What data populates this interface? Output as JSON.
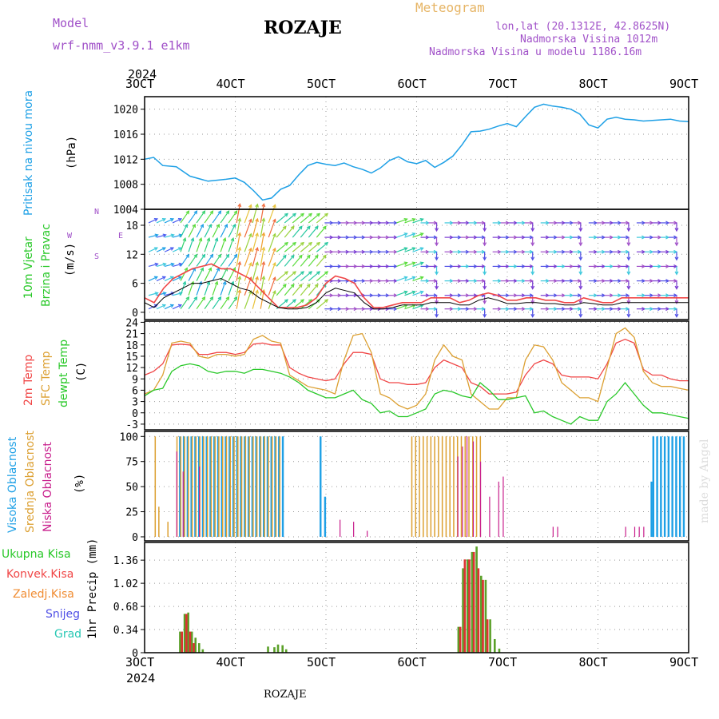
{
  "header": {
    "model_label": "Model",
    "model_name": "wrf-nmm_v3.9.1 e1km",
    "station": "ROZAJE",
    "meteogram": "Meteogram",
    "lonlat": "lon,lat (20.1312E, 42.8625N)",
    "elevation": "Nadmorska Visina 1012m",
    "model_elevation": "Nadmorska Visina u modelu 1186.16m",
    "footer_station": "ROZAJE",
    "watermark": "made by Angel",
    "year_top": "2024",
    "year_bottom": "2024"
  },
  "colors": {
    "pressure": "#1ea0e6",
    "temp2m": "#f04646",
    "sfc": "#dca032",
    "dewpt": "#28c828",
    "high_cloud": "#1ea0e6",
    "mid_cloud": "#dca032",
    "low_cloud": "#c81e8c",
    "purple": "#a050c8"
  },
  "dates": [
    "3OCT",
    "4OCT",
    "5OCT",
    "6OCT",
    "7OCT",
    "8OCT",
    "9OCT"
  ],
  "panels": {
    "pressure": {
      "label": "Pritisak na nivou mora",
      "unit": "(hPa)",
      "ticks": [
        "1020",
        "1016",
        "1012",
        "1008",
        "1004"
      ]
    },
    "wind": {
      "label1": "10m Vjetar",
      "label2": "Brzina i Pravac",
      "unit": "(m/s)",
      "ticks": [
        "18",
        "12",
        "6",
        "0"
      ],
      "compass": {
        "n": "N",
        "w": "W",
        "e": "E",
        "s": "S"
      }
    },
    "temp": {
      "label1": "2m Temp",
      "label2": "SFC Temp",
      "label3": "dewpt Temp",
      "unit": "(C)",
      "ticks": [
        "24",
        "21",
        "18",
        "15",
        "12",
        "9",
        "6",
        "3",
        "0",
        "-3"
      ]
    },
    "cloud": {
      "label1": "Visoka Oblacnost",
      "label2": "Srednja Oblacnost",
      "label3": "Niska Oblacnost",
      "unit": "(%)",
      "ticks": [
        "100",
        "75",
        "50",
        "25",
        "0"
      ]
    },
    "precip": {
      "unit": "1hr Precip (mm)",
      "ticks": [
        "1.36",
        "1.02",
        "0.68",
        "0.34",
        "0"
      ],
      "legend": [
        "Ukupna Kisa",
        "Konvek.Kisa",
        "Zaledj.Kisa",
        "Snijeg",
        "Grad"
      ]
    }
  },
  "chart_data": [
    {
      "type": "line",
      "panel": "pressure",
      "x_unit": "days since 3OCT 00UTC",
      "ylim": [
        1004,
        1022
      ],
      "x": [
        0,
        0.1,
        0.2,
        0.35,
        0.5,
        0.7,
        0.9,
        1.0,
        1.1,
        1.2,
        1.3,
        1.4,
        1.5,
        1.6,
        1.7,
        1.8,
        1.9,
        2.0,
        2.1,
        2.2,
        2.3,
        2.4,
        2.5,
        2.6,
        2.7,
        2.8,
        2.9,
        3.0,
        3.1,
        3.2,
        3.3,
        3.4,
        3.5,
        3.6,
        3.7,
        3.8,
        3.9,
        4.0,
        4.1,
        4.2,
        4.3,
        4.4,
        4.5,
        4.6,
        4.7,
        4.8,
        4.9,
        5.0,
        5.1,
        5.2,
        5.3,
        5.4,
        5.5,
        5.6,
        5.7,
        5.8,
        5.9,
        6.0
      ],
      "values": [
        1012,
        1012.3,
        1011,
        1010.8,
        1009.3,
        1008.5,
        1008.8,
        1009,
        1008.3,
        1007,
        1005.5,
        1005.8,
        1007.2,
        1007.8,
        1009.5,
        1011,
        1011.5,
        1011.2,
        1011,
        1011.4,
        1010.8,
        1010.4,
        1009.8,
        1010.6,
        1011.8,
        1012.4,
        1011.6,
        1011.3,
        1011.8,
        1010.7,
        1011.5,
        1012.5,
        1014.3,
        1016.4,
        1016.5,
        1016.8,
        1017.3,
        1017.7,
        1017.2,
        1018.8,
        1020.3,
        1020.8,
        1020.5,
        1020.3,
        1020.0,
        1019.2,
        1017.5,
        1017.0,
        1018.4,
        1018.7,
        1018.4,
        1018.3,
        1018.1,
        1018.2,
        1018.3,
        1018.4,
        1018.1,
        1018.0
      ]
    },
    {
      "type": "line",
      "panel": "wind",
      "ylim": [
        0,
        20
      ],
      "series": [
        {
          "values": [
            3,
            2,
            5,
            7,
            8,
            9,
            9.5,
            10,
            9,
            9,
            8,
            7,
            5,
            3,
            1,
            1,
            1,
            1.5,
            3,
            6,
            7.5,
            7,
            6,
            3,
            1,
            1,
            1.5,
            2,
            2,
            2,
            3,
            3,
            3,
            2,
            2.5,
            3.5,
            4,
            3.5,
            2.5,
            2.5,
            3,
            3,
            2.5,
            2.5,
            2,
            2,
            3,
            2.5,
            2,
            2,
            3,
            3,
            3,
            3,
            3,
            3,
            3,
            3
          ]
        },
        {
          "values": [
            2,
            1,
            3,
            4,
            5,
            6,
            6,
            6.5,
            7,
            6,
            5,
            4.5,
            3,
            2,
            1,
            0.7,
            0.7,
            1,
            2,
            4,
            5,
            4.5,
            4,
            2,
            0.7,
            0.7,
            1,
            1.5,
            1.5,
            1.5,
            2,
            2,
            2,
            1.5,
            1.5,
            2.5,
            3,
            2.5,
            1.8,
            1.8,
            2,
            2,
            1.8,
            1.8,
            1.5,
            1.5,
            2,
            1.8,
            1.5,
            1.5,
            2,
            2,
            2,
            2,
            2,
            2,
            2,
            2
          ]
        }
      ]
    },
    {
      "type": "line",
      "panel": "temp",
      "ylim": [
        -4.5,
        24
      ],
      "x": [
        0,
        0.1,
        0.2,
        0.3,
        0.4,
        0.5,
        0.6,
        0.7,
        0.8,
        0.9,
        1.0,
        1.1,
        1.2,
        1.3,
        1.4,
        1.5,
        1.6,
        1.7,
        1.8,
        1.9,
        2.0,
        2.1,
        2.2,
        2.3,
        2.4,
        2.5,
        2.6,
        2.7,
        2.8,
        2.9,
        3.0,
        3.1,
        3.2,
        3.3,
        3.4,
        3.5,
        3.6,
        3.7,
        3.8,
        3.9,
        4.0,
        4.1,
        4.2,
        4.3,
        4.4,
        4.5,
        4.6,
        4.7,
        4.8,
        4.9,
        5.0,
        5.1,
        5.2,
        5.3,
        5.4,
        5.5,
        5.6,
        5.7,
        5.8,
        5.9,
        6.0
      ],
      "series": [
        {
          "name": "2m Temp",
          "values": [
            10,
            11,
            13,
            18,
            18.2,
            18,
            15.5,
            15.5,
            16,
            16,
            15.5,
            16,
            18.2,
            18.5,
            18,
            18,
            12,
            10.5,
            9.5,
            9,
            8.5,
            9,
            13,
            16,
            16,
            15.5,
            9,
            8,
            8,
            7.5,
            7.5,
            8,
            12,
            14,
            13,
            12,
            8,
            7,
            5,
            5,
            5,
            5.5,
            10,
            13,
            14,
            13,
            10,
            9.5,
            9.5,
            9.5,
            9,
            13,
            18.5,
            19.5,
            18.5,
            11.5,
            10,
            10,
            9,
            8.5,
            8.5
          ]
        },
        {
          "name": "SFC Temp",
          "values": [
            5,
            6,
            10,
            18.5,
            19,
            18.5,
            15,
            14.5,
            15.5,
            15.5,
            15,
            15.5,
            19.5,
            20.5,
            19,
            18.5,
            10,
            8.5,
            7,
            6.5,
            6,
            5,
            14,
            20.5,
            21,
            16,
            5,
            4,
            2,
            1,
            2,
            5,
            14,
            18,
            15,
            14,
            5,
            3,
            1,
            1,
            4,
            4,
            14,
            18,
            17.5,
            14,
            8,
            6,
            4,
            4,
            3,
            12,
            21,
            22.5,
            20,
            11,
            8,
            7,
            7,
            6.5,
            6
          ]
        },
        {
          "name": "dewpt Temp",
          "values": [
            4.5,
            6,
            6.5,
            11,
            12.5,
            13,
            12.5,
            11,
            10.5,
            11,
            11,
            10.5,
            11.5,
            11.5,
            11,
            10.5,
            9.5,
            8,
            6,
            5,
            4,
            4,
            5,
            6,
            3.5,
            2.5,
            0,
            0.5,
            -1,
            -1,
            0,
            1,
            5,
            6,
            5.5,
            4.5,
            4,
            8,
            6,
            3.5,
            3.5,
            4,
            4.5,
            0,
            0.5,
            -1,
            -2,
            -3,
            -1,
            -2,
            -2,
            3,
            5,
            8,
            5,
            2,
            0,
            0,
            -0.5,
            -1,
            -1.5
          ]
        }
      ]
    },
    {
      "type": "bar",
      "panel": "cloud",
      "ylim": [
        0,
        100
      ],
      "series": [
        {
          "name": "Visoka Oblacnost",
          "ranges": [
            [
              0.38,
              1.55,
              100
            ],
            [
              1.93,
              1.96,
              100
            ],
            [
              1.98,
              2.0,
              40
            ],
            [
              5.6,
              5.95,
              100
            ],
            [
              5.58,
              5.6,
              55
            ]
          ]
        },
        {
          "name": "Srednja Oblacnost",
          "ranges": [
            [
              0.1,
              0.12,
              100
            ],
            [
              0.14,
              0.16,
              30
            ],
            [
              0.24,
              0.26,
              15
            ],
            [
              0.34,
              1.5,
              100
            ],
            [
              2.93,
              3.7,
              100
            ]
          ]
        },
        {
          "name": "Niska Oblacnost",
          "spikes": [
            [
              0.35,
              85
            ],
            [
              0.42,
              65
            ],
            [
              0.6,
              70
            ],
            [
              2.15,
              17
            ],
            [
              2.3,
              15
            ],
            [
              2.45,
              6
            ],
            [
              3.45,
              80
            ],
            [
              3.5,
              90
            ],
            [
              3.55,
              100
            ],
            [
              3.62,
              95
            ],
            [
              3.7,
              75
            ],
            [
              3.8,
              40
            ],
            [
              3.9,
              55
            ],
            [
              3.95,
              60
            ],
            [
              4.5,
              10
            ],
            [
              4.55,
              10
            ],
            [
              5.3,
              10
            ],
            [
              5.4,
              10
            ],
            [
              5.45,
              10
            ],
            [
              5.5,
              10
            ]
          ]
        }
      ]
    },
    {
      "type": "bar",
      "panel": "precip",
      "ylim": [
        0,
        1.55
      ],
      "series": [
        {
          "name": "Ukupna Kisa",
          "bars": [
            [
              0.38,
              0.31
            ],
            [
              0.43,
              0.57
            ],
            [
              0.47,
              0.59
            ],
            [
              0.51,
              0.31
            ],
            [
              0.55,
              0.22
            ],
            [
              0.59,
              0.14
            ],
            [
              0.63,
              0.05
            ],
            [
              1.35,
              0.09
            ],
            [
              1.42,
              0.08
            ],
            [
              1.46,
              0.12
            ],
            [
              1.51,
              0.11
            ],
            [
              1.55,
              0.05
            ],
            [
              3.45,
              0.38
            ],
            [
              3.5,
              1.24
            ],
            [
              3.55,
              1.37
            ],
            [
              3.6,
              1.48
            ],
            [
              3.65,
              1.56
            ],
            [
              3.7,
              1.13
            ],
            [
              3.75,
              1.07
            ],
            [
              3.8,
              0.49
            ],
            [
              3.85,
              0.2
            ],
            [
              3.9,
              0.06
            ]
          ]
        },
        {
          "name": "Konvek.Kisa",
          "bars": [
            [
              0.4,
              0.31
            ],
            [
              0.45,
              0.57
            ],
            [
              0.49,
              0.31
            ],
            [
              0.53,
              0.14
            ],
            [
              3.47,
              0.38
            ],
            [
              3.52,
              1.37
            ],
            [
              3.57,
              1.37
            ],
            [
              3.62,
              1.48
            ],
            [
              3.67,
              1.24
            ],
            [
              3.72,
              1.07
            ],
            [
              3.77,
              0.49
            ]
          ]
        }
      ]
    }
  ]
}
